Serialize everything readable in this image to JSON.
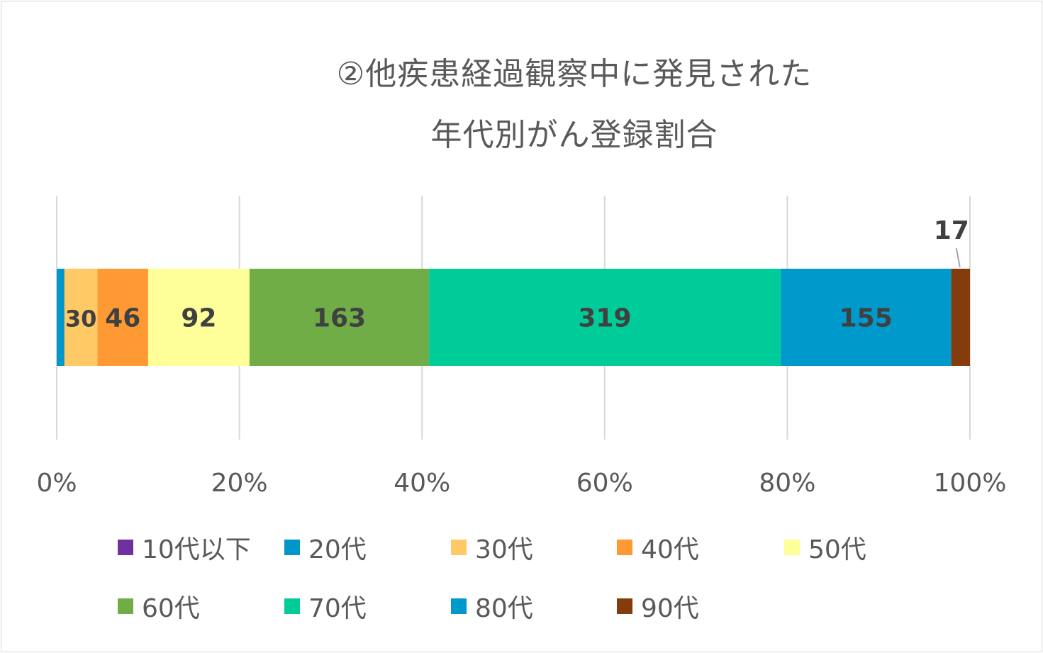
{
  "chart_data": {
    "type": "bar",
    "orientation": "horizontal",
    "stacked": "percent",
    "title": "②他疾患経過観察中に発見された年代別がん登録割合",
    "title_lines": [
      "②他疾患経過観察中に発見された",
      "年代別がん登録割合"
    ],
    "categories": [
      ""
    ],
    "x_ticks": [
      "0%",
      "20%",
      "40%",
      "60%",
      "80%",
      "100%"
    ],
    "xlim": [
      0,
      100
    ],
    "grid": true,
    "legend_position": "bottom",
    "series": [
      {
        "name": "10代以下",
        "values": [
          0
        ],
        "label": "",
        "color": "#7030a0"
      },
      {
        "name": "20代",
        "values": [
          7
        ],
        "label": "",
        "color": "#0096c8"
      },
      {
        "name": "30代",
        "values": [
          30
        ],
        "label": "30",
        "color": "#ffc966"
      },
      {
        "name": "40代",
        "values": [
          46
        ],
        "label": "46",
        "color": "#ff9933"
      },
      {
        "name": "50代",
        "values": [
          92
        ],
        "label": "92",
        "color": "#ffff99"
      },
      {
        "name": "60代",
        "values": [
          163
        ],
        "label": "163",
        "color": "#70ad47"
      },
      {
        "name": "70代",
        "values": [
          319
        ],
        "label": "319",
        "color": "#00cc99"
      },
      {
        "name": "80代",
        "values": [
          155
        ],
        "label": "155",
        "color": "#0099cc"
      },
      {
        "name": "90代",
        "values": [
          17
        ],
        "label": "17",
        "color": "#843c0c"
      }
    ]
  }
}
